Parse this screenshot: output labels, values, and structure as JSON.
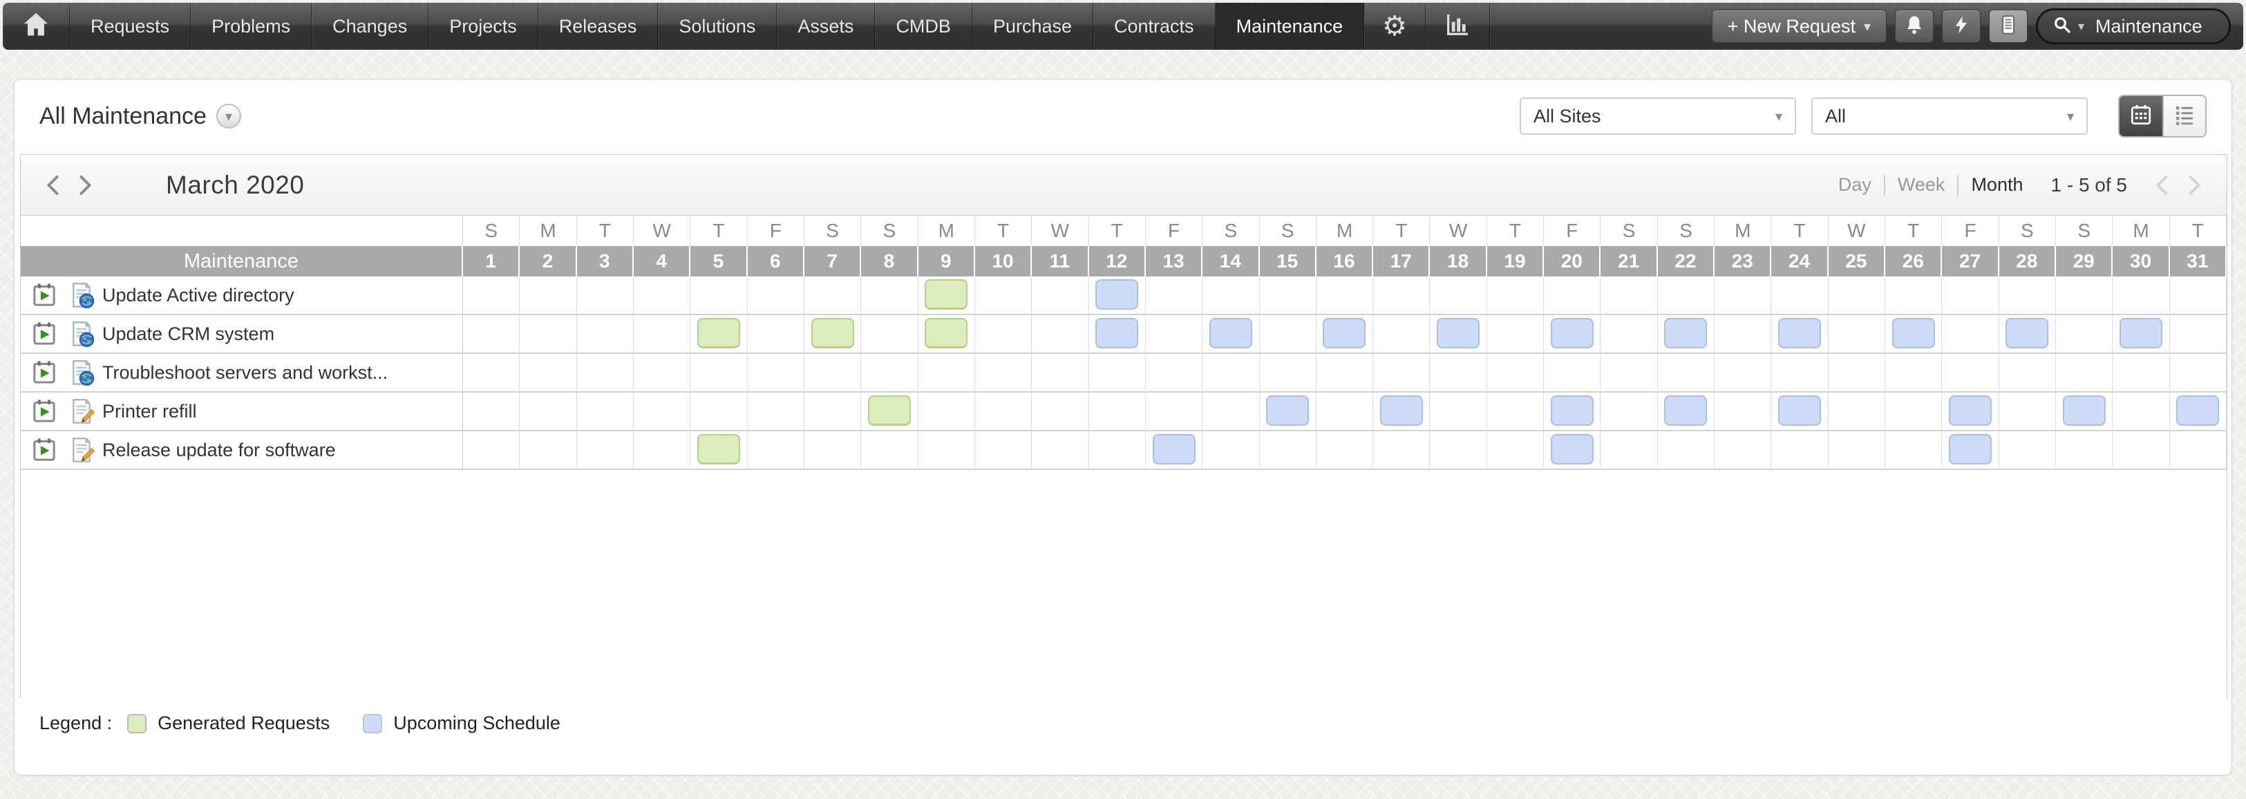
{
  "nav": {
    "items": [
      "Requests",
      "Problems",
      "Changes",
      "Projects",
      "Releases",
      "Solutions",
      "Assets",
      "CMDB",
      "Purchase",
      "Contracts",
      "Maintenance"
    ],
    "active_tab": "Maintenance",
    "new_request_label": "+ New Request",
    "search_value": "Maintenance"
  },
  "header": {
    "title": "All Maintenance",
    "site_filter": "All Sites",
    "category_filter": "All"
  },
  "toolbar": {
    "month_title": "March 2020",
    "views": [
      "Day",
      "Week",
      "Month"
    ],
    "active_view": "Month",
    "pagination": "1 - 5 of 5"
  },
  "calendar": {
    "label_header": "Maintenance",
    "days": [
      {
        "n": "1",
        "w": "S"
      },
      {
        "n": "2",
        "w": "M"
      },
      {
        "n": "3",
        "w": "T"
      },
      {
        "n": "4",
        "w": "W"
      },
      {
        "n": "5",
        "w": "T"
      },
      {
        "n": "6",
        "w": "F"
      },
      {
        "n": "7",
        "w": "S"
      },
      {
        "n": "8",
        "w": "S"
      },
      {
        "n": "9",
        "w": "M"
      },
      {
        "n": "10",
        "w": "T"
      },
      {
        "n": "11",
        "w": "W"
      },
      {
        "n": "12",
        "w": "T"
      },
      {
        "n": "13",
        "w": "F"
      },
      {
        "n": "14",
        "w": "S"
      },
      {
        "n": "15",
        "w": "S"
      },
      {
        "n": "16",
        "w": "M"
      },
      {
        "n": "17",
        "w": "T"
      },
      {
        "n": "18",
        "w": "W"
      },
      {
        "n": "19",
        "w": "T"
      },
      {
        "n": "20",
        "w": "F"
      },
      {
        "n": "21",
        "w": "S"
      },
      {
        "n": "22",
        "w": "S"
      },
      {
        "n": "23",
        "w": "M"
      },
      {
        "n": "24",
        "w": "T"
      },
      {
        "n": "25",
        "w": "W"
      },
      {
        "n": "26",
        "w": "T"
      },
      {
        "n": "27",
        "w": "F"
      },
      {
        "n": "28",
        "w": "S"
      },
      {
        "n": "29",
        "w": "S"
      },
      {
        "n": "30",
        "w": "M"
      },
      {
        "n": "31",
        "w": "T"
      }
    ],
    "rows": [
      {
        "icon": "doc-globe",
        "label": "Update Active directory",
        "generated": [
          9
        ],
        "upcoming": [
          12
        ]
      },
      {
        "icon": "doc-globe",
        "label": "Update CRM system",
        "generated": [
          5,
          7,
          9
        ],
        "upcoming": [
          12,
          14,
          16,
          18,
          20,
          22,
          24,
          26,
          28,
          30
        ]
      },
      {
        "icon": "doc-globe",
        "label": "Troubleshoot servers and workst...",
        "generated": [],
        "upcoming": []
      },
      {
        "icon": "doc-pencil",
        "label": "Printer refill",
        "generated": [
          8
        ],
        "upcoming": [
          15,
          17,
          20,
          22,
          24,
          27,
          29,
          31
        ]
      },
      {
        "icon": "doc-pencil",
        "label": "Release update for software",
        "generated": [
          5
        ],
        "upcoming": [
          13,
          20,
          27
        ]
      }
    ]
  },
  "legend": {
    "title": "Legend :",
    "items": [
      {
        "type": "generated",
        "label": "Generated Requests",
        "fill": "#dcecbd",
        "border": "#b2d284"
      },
      {
        "type": "upcoming",
        "label": "Upcoming Schedule",
        "fill": "#cddcf6",
        "border": "#a9bfe0"
      }
    ]
  }
}
